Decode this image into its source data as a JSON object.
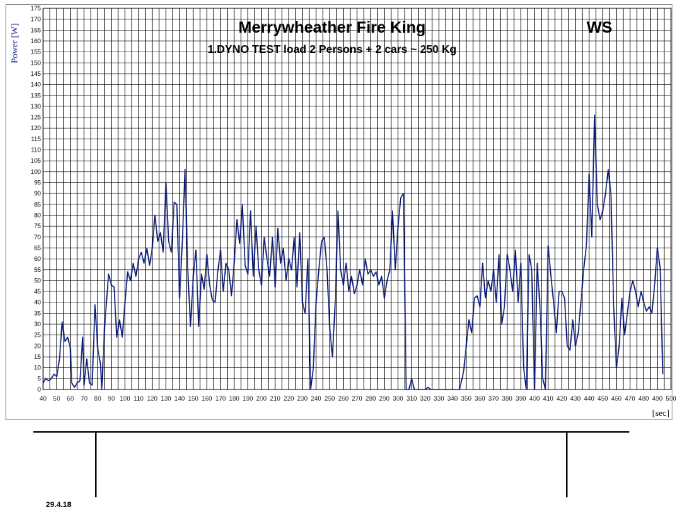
{
  "chart_data": {
    "type": "line",
    "ylabel": "Power [W]",
    "xlabel": "[sec]",
    "xlim": [
      40,
      500
    ],
    "ylim": [
      0,
      175
    ],
    "x_ticks": [
      40,
      50,
      60,
      70,
      80,
      90,
      100,
      110,
      120,
      130,
      140,
      150,
      160,
      170,
      180,
      190,
      200,
      210,
      220,
      230,
      240,
      250,
      260,
      270,
      280,
      290,
      300,
      310,
      320,
      330,
      340,
      350,
      360,
      370,
      380,
      390,
      400,
      410,
      420,
      430,
      440,
      450,
      460,
      470,
      480,
      490,
      500
    ],
    "y_ticks": [
      0,
      5,
      10,
      15,
      20,
      25,
      30,
      35,
      40,
      45,
      50,
      55,
      60,
      65,
      70,
      75,
      80,
      85,
      90,
      95,
      100,
      105,
      110,
      115,
      120,
      125,
      130,
      135,
      140,
      145,
      150,
      155,
      160,
      165,
      170,
      175
    ],
    "grid": true,
    "series": [
      {
        "color": "#0a1a78",
        "points": [
          [
            40,
            3
          ],
          [
            42,
            5
          ],
          [
            44,
            4
          ],
          [
            46,
            5
          ],
          [
            48,
            7
          ],
          [
            50,
            6
          ],
          [
            52,
            14
          ],
          [
            54,
            31
          ],
          [
            56,
            22
          ],
          [
            58,
            24
          ],
          [
            60,
            19
          ],
          [
            61,
            3
          ],
          [
            63,
            1
          ],
          [
            65,
            3
          ],
          [
            67,
            4
          ],
          [
            69,
            24
          ],
          [
            70,
            2
          ],
          [
            72,
            14
          ],
          [
            74,
            3
          ],
          [
            76,
            2
          ],
          [
            78,
            39
          ],
          [
            80,
            19
          ],
          [
            82,
            12
          ],
          [
            83,
            0
          ],
          [
            85,
            28
          ],
          [
            87,
            45
          ],
          [
            88,
            53
          ],
          [
            90,
            48
          ],
          [
            92,
            47
          ],
          [
            94,
            24
          ],
          [
            96,
            32
          ],
          [
            98,
            24
          ],
          [
            100,
            40
          ],
          [
            102,
            54
          ],
          [
            104,
            50
          ],
          [
            106,
            58
          ],
          [
            108,
            52
          ],
          [
            110,
            60
          ],
          [
            112,
            63
          ],
          [
            114,
            58
          ],
          [
            116,
            65
          ],
          [
            118,
            57
          ],
          [
            120,
            65
          ],
          [
            122,
            80
          ],
          [
            124,
            68
          ],
          [
            126,
            72
          ],
          [
            128,
            63
          ],
          [
            130,
            95
          ],
          [
            132,
            68
          ],
          [
            134,
            63
          ],
          [
            136,
            86
          ],
          [
            138,
            85
          ],
          [
            140,
            42
          ],
          [
            142,
            68
          ],
          [
            144,
            101
          ],
          [
            146,
            55
          ],
          [
            148,
            29
          ],
          [
            150,
            52
          ],
          [
            152,
            64
          ],
          [
            154,
            29
          ],
          [
            156,
            53
          ],
          [
            158,
            46
          ],
          [
            160,
            62
          ],
          [
            162,
            48
          ],
          [
            164,
            41
          ],
          [
            166,
            40
          ],
          [
            168,
            54
          ],
          [
            170,
            64
          ],
          [
            172,
            45
          ],
          [
            174,
            58
          ],
          [
            176,
            55
          ],
          [
            178,
            43
          ],
          [
            180,
            58
          ],
          [
            182,
            78
          ],
          [
            184,
            67
          ],
          [
            186,
            85
          ],
          [
            188,
            57
          ],
          [
            190,
            53
          ],
          [
            192,
            82
          ],
          [
            194,
            52
          ],
          [
            196,
            75
          ],
          [
            198,
            55
          ],
          [
            200,
            48
          ],
          [
            202,
            70
          ],
          [
            204,
            60
          ],
          [
            206,
            52
          ],
          [
            208,
            70
          ],
          [
            210,
            47
          ],
          [
            212,
            74
          ],
          [
            214,
            58
          ],
          [
            216,
            65
          ],
          [
            218,
            50
          ],
          [
            220,
            60
          ],
          [
            222,
            55
          ],
          [
            224,
            70
          ],
          [
            226,
            47
          ],
          [
            228,
            72
          ],
          [
            230,
            40
          ],
          [
            232,
            35
          ],
          [
            234,
            60
          ],
          [
            236,
            0
          ],
          [
            238,
            10
          ],
          [
            240,
            40
          ],
          [
            242,
            55
          ],
          [
            244,
            68
          ],
          [
            246,
            70
          ],
          [
            248,
            55
          ],
          [
            250,
            28
          ],
          [
            252,
            15
          ],
          [
            254,
            40
          ],
          [
            256,
            82
          ],
          [
            258,
            55
          ],
          [
            260,
            48
          ],
          [
            262,
            58
          ],
          [
            264,
            45
          ],
          [
            266,
            52
          ],
          [
            268,
            44
          ],
          [
            270,
            48
          ],
          [
            272,
            55
          ],
          [
            274,
            48
          ],
          [
            276,
            60
          ],
          [
            278,
            53
          ],
          [
            280,
            55
          ],
          [
            282,
            52
          ],
          [
            284,
            54
          ],
          [
            286,
            48
          ],
          [
            288,
            52
          ],
          [
            290,
            42
          ],
          [
            292,
            50
          ],
          [
            294,
            55
          ],
          [
            296,
            82
          ],
          [
            298,
            55
          ],
          [
            300,
            75
          ],
          [
            302,
            88
          ],
          [
            304,
            90
          ],
          [
            306,
            0
          ],
          [
            308,
            0
          ],
          [
            310,
            5
          ],
          [
            312,
            0
          ],
          [
            320,
            0
          ],
          [
            322,
            1
          ],
          [
            324,
            0
          ],
          [
            345,
            0
          ],
          [
            348,
            8
          ],
          [
            350,
            20
          ],
          [
            352,
            32
          ],
          [
            354,
            26
          ],
          [
            356,
            42
          ],
          [
            358,
            43
          ],
          [
            360,
            38
          ],
          [
            362,
            58
          ],
          [
            364,
            42
          ],
          [
            366,
            50
          ],
          [
            368,
            45
          ],
          [
            370,
            55
          ],
          [
            372,
            40
          ],
          [
            374,
            62
          ],
          [
            376,
            30
          ],
          [
            378,
            38
          ],
          [
            380,
            62
          ],
          [
            382,
            55
          ],
          [
            384,
            45
          ],
          [
            386,
            64
          ],
          [
            388,
            40
          ],
          [
            390,
            58
          ],
          [
            392,
            10
          ],
          [
            394,
            0
          ],
          [
            396,
            62
          ],
          [
            398,
            55
          ],
          [
            400,
            0
          ],
          [
            402,
            58
          ],
          [
            404,
            38
          ],
          [
            406,
            5
          ],
          [
            408,
            0
          ],
          [
            410,
            66
          ],
          [
            412,
            52
          ],
          [
            414,
            40
          ],
          [
            416,
            26
          ],
          [
            418,
            45
          ],
          [
            420,
            45
          ],
          [
            422,
            42
          ],
          [
            424,
            20
          ],
          [
            426,
            18
          ],
          [
            428,
            32
          ],
          [
            430,
            20
          ],
          [
            432,
            26
          ],
          [
            434,
            40
          ],
          [
            436,
            55
          ],
          [
            438,
            66
          ],
          [
            440,
            99
          ],
          [
            442,
            70
          ],
          [
            444,
            126
          ],
          [
            446,
            85
          ],
          [
            448,
            78
          ],
          [
            450,
            82
          ],
          [
            452,
            90
          ],
          [
            454,
            101
          ],
          [
            456,
            90
          ],
          [
            458,
            38
          ],
          [
            460,
            10
          ],
          [
            462,
            20
          ],
          [
            464,
            42
          ],
          [
            466,
            25
          ],
          [
            468,
            35
          ],
          [
            470,
            45
          ],
          [
            472,
            50
          ],
          [
            474,
            45
          ],
          [
            476,
            38
          ],
          [
            478,
            45
          ],
          [
            480,
            40
          ],
          [
            482,
            36
          ],
          [
            484,
            38
          ],
          [
            486,
            35
          ],
          [
            488,
            48
          ],
          [
            490,
            65
          ],
          [
            492,
            56
          ],
          [
            494,
            7
          ]
        ]
      }
    ]
  },
  "footer": {
    "title": "Merrywheather Fire King",
    "subtitle": "1.DYNO TEST load 2 Persons + 2 cars ~ 250 Kg",
    "code": "WS",
    "date": "29.4.18"
  }
}
